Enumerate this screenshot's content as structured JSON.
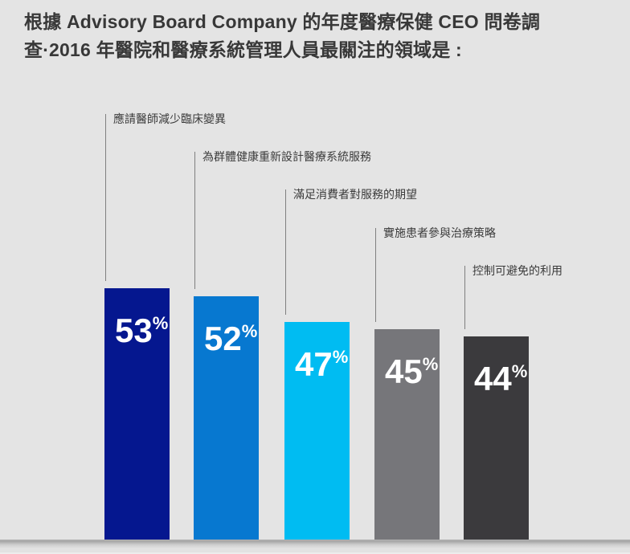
{
  "title": {
    "lines": [
      "根據 Advisory Board Company 的年度醫療保健 CEO 問卷調",
      "查·2016 年醫院和醫療系統管理人員最關注的領域是 :"
    ],
    "full_text": "根據 Advisory Board Company 的年度醫療保健 CEO 問卷調查·2016 年醫院和醫療系統管理人員最關注的領域是 :"
  },
  "chart_data": {
    "type": "bar",
    "title": "2016 年醫院和醫療系統管理人員最關注的領域",
    "categories": [
      "應請醫師減少臨床變異",
      "為群體健康重新設計醫療系統服務",
      "滿足消費者對服務的期望",
      "實施患者參與治療策略",
      "控制可避免的利用"
    ],
    "values": [
      53,
      52,
      47,
      45,
      44
    ],
    "unit": "%",
    "bar_colors": [
      "#05178F",
      "#0778D0",
      "#00BCF2",
      "#76767A",
      "#3B3A3D"
    ],
    "value_label_position": "inside-top-left",
    "category_label_style": "staggered-leader-lines",
    "axes": "none",
    "grid": false,
    "legend_position": "none",
    "orientation": "vertical"
  },
  "colors": {
    "background": "#E4E4E4",
    "title_text": "#383838",
    "category_text": "#3B3B3B",
    "leader_line": "#7F7F7F",
    "value_text": "#FFFFFF"
  }
}
